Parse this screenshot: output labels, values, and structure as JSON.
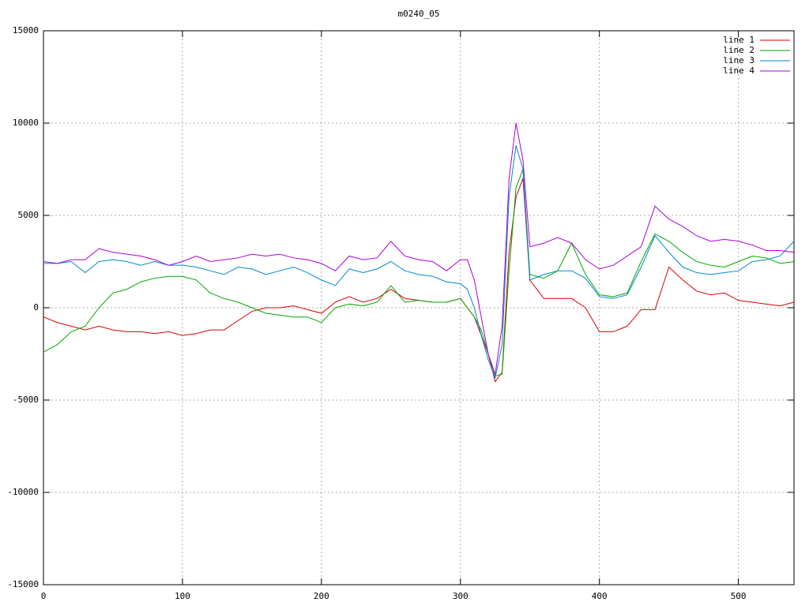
{
  "chart_data": {
    "type": "line",
    "title": "m0240_05",
    "x": [
      0,
      10,
      20,
      30,
      40,
      50,
      60,
      70,
      80,
      90,
      100,
      110,
      120,
      130,
      140,
      150,
      160,
      170,
      180,
      190,
      200,
      210,
      220,
      230,
      240,
      250,
      260,
      270,
      280,
      290,
      300,
      305,
      310,
      315,
      320,
      325,
      330,
      335,
      340,
      345,
      350,
      360,
      370,
      380,
      390,
      400,
      410,
      420,
      430,
      440,
      450,
      460,
      470,
      480,
      490,
      500,
      510,
      520,
      530,
      540
    ],
    "series": [
      {
        "name": "line 1",
        "color": "#dd0000",
        "values": [
          -500,
          -800,
          -1000,
          -1200,
          -1000,
          -1200,
          -1300,
          -1300,
          -1400,
          -1300,
          -1500,
          -1400,
          -1200,
          -1200,
          -700,
          -200,
          0,
          0,
          100,
          -100,
          -300,
          300,
          600,
          300,
          500,
          1000,
          500,
          400,
          300,
          300,
          500,
          0,
          -500,
          -1500,
          -2500,
          -4000,
          -3500,
          3000,
          6000,
          7000,
          1500,
          500,
          500,
          500,
          0,
          -1300,
          -1300,
          -1000,
          -100,
          -100,
          2200,
          1500,
          900,
          700,
          800,
          400,
          300,
          200,
          100,
          300
        ]
      },
      {
        "name": "line 2",
        "color": "#00aa00",
        "values": [
          -2400,
          -2000,
          -1300,
          -1000,
          0,
          800,
          1000,
          1400,
          1600,
          1700,
          1700,
          1500,
          800,
          500,
          300,
          0,
          -300,
          -400,
          -500,
          -500,
          -800,
          0,
          200,
          100,
          300,
          1200,
          300,
          400,
          300,
          300,
          500,
          0,
          -500,
          -1200,
          -2500,
          -3700,
          -3600,
          2000,
          6500,
          7500,
          1800,
          1600,
          2000,
          3500,
          1800,
          700,
          600,
          800,
          2500,
          4000,
          3600,
          3000,
          2500,
          2300,
          2200,
          2500,
          2800,
          2700,
          2400,
          2500
        ]
      },
      {
        "name": "line 3",
        "color": "#0088cc",
        "values": [
          2400,
          2400,
          2500,
          1900,
          2500,
          2600,
          2500,
          2300,
          2500,
          2300,
          2300,
          2200,
          2000,
          1800,
          2200,
          2100,
          1800,
          2000,
          2200,
          1900,
          1500,
          1200,
          2100,
          1900,
          2100,
          2500,
          2000,
          1800,
          1700,
          1400,
          1300,
          1000,
          0,
          -1500,
          -2800,
          -3800,
          -2000,
          6000,
          8800,
          7500,
          1500,
          1800,
          2000,
          2000,
          1600,
          600,
          500,
          700,
          2200,
          3900,
          3000,
          2200,
          1900,
          1800,
          1900,
          2000,
          2500,
          2600,
          2800,
          3600
        ]
      },
      {
        "name": "line 4",
        "color": "#aa00dd",
        "values": [
          2500,
          2400,
          2600,
          2600,
          3200,
          3000,
          2900,
          2800,
          2600,
          2300,
          2500,
          2800,
          2500,
          2600,
          2700,
          2900,
          2800,
          2900,
          2700,
          2600,
          2400,
          2000,
          2800,
          2600,
          2700,
          3600,
          2800,
          2600,
          2500,
          2000,
          2600,
          2600,
          1500,
          -500,
          -2500,
          -3600,
          -1000,
          7000,
          10000,
          8000,
          3300,
          3500,
          3800,
          3500,
          2600,
          2100,
          2300,
          2800,
          3300,
          5500,
          4800,
          4400,
          3900,
          3600,
          3700,
          3600,
          3400,
          3100,
          3100,
          3000
        ]
      }
    ],
    "xlim": [
      0,
      540
    ],
    "xticks": [
      0,
      100,
      200,
      300,
      400,
      500
    ],
    "ylim": [
      -15000,
      15000
    ],
    "yticks": [
      -15000,
      -10000,
      -5000,
      0,
      5000,
      10000,
      15000
    ],
    "grid": true,
    "legend": "top-right"
  }
}
